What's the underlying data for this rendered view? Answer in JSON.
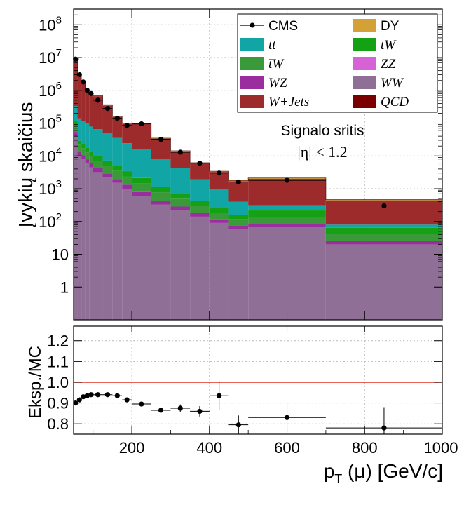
{
  "chart_data": [
    {
      "type": "stacked-histogram",
      "ylabel": "Įvykių skaičius",
      "yscale": "log",
      "ylim": [
        0.1,
        300000000
      ],
      "xlim": [
        50,
        1000
      ],
      "yticks": [
        {
          "value": 1,
          "label": "1"
        },
        {
          "value": 10,
          "label": "10"
        },
        {
          "value": 100,
          "label": "10",
          "exp": "2"
        },
        {
          "value": 1000,
          "label": "10",
          "exp": "3"
        },
        {
          "value": 10000,
          "label": "10",
          "exp": "4"
        },
        {
          "value": 100000,
          "label": "10",
          "exp": "5"
        },
        {
          "value": 1000000,
          "label": "10",
          "exp": "6"
        },
        {
          "value": 10000000,
          "label": "10",
          "exp": "7"
        },
        {
          "value": 100000000,
          "label": "10",
          "exp": "8"
        }
      ],
      "grid": true,
      "legend_position": "top-right",
      "annotation": {
        "line1": "Signalo sritis",
        "line2": "|η| < 1.2"
      },
      "bin_edges": [
        50,
        60,
        70,
        80,
        90,
        100,
        125,
        150,
        175,
        200,
        250,
        300,
        350,
        400,
        450,
        500,
        700,
        1000
      ],
      "stack": [
        {
          "name": "WW",
          "color": "#8f6f96",
          "values": [
            40000,
            10000,
            8000,
            6000,
            4500,
            3200,
            2200,
            1500,
            1000,
            600,
            330,
            220,
            140,
            90,
            60,
            70,
            20
          ]
        },
        {
          "name": "WZ",
          "color": "#9b2e9f",
          "values": [
            14000,
            3500,
            2600,
            1900,
            1400,
            1000,
            700,
            480,
            320,
            190,
            100,
            65,
            40,
            25,
            16,
            12,
            5
          ]
        },
        {
          "name": "t̄W",
          "color": "#3a9a3a",
          "values": [
            30000,
            8000,
            6500,
            5000,
            3800,
            2800,
            2100,
            1500,
            1000,
            650,
            350,
            210,
            120,
            70,
            40,
            55,
            17
          ]
        },
        {
          "name": "tW",
          "color": "#14a114",
          "values": [
            30000,
            7500,
            6200,
            4900,
            3900,
            2900,
            2200,
            1600,
            1100,
            680,
            370,
            210,
            120,
            70,
            40,
            80,
            22
          ]
        },
        {
          "name": "tt",
          "color": "#12a5a5",
          "values": [
            220000,
            110000,
            95000,
            80000,
            65000,
            55000,
            42000,
            30000,
            21000,
            14000,
            7000,
            3500,
            1500,
            700,
            240,
            95,
            16
          ]
        },
        {
          "name": "W+Jets",
          "color": "#9e2b2b",
          "values": [
            8000000,
            3000000,
            1500000,
            900000,
            700000,
            600000,
            300000,
            120000,
            70000,
            80000,
            25000,
            9500,
            4000,
            2300,
            1300,
            1700,
            360
          ]
        },
        {
          "name": "DY",
          "color": "#d4a137",
          "values": [
            400000,
            150000,
            80000,
            45000,
            35000,
            30000,
            15000,
            6000,
            3500,
            4000,
            1500,
            600,
            260,
            150,
            90,
            110,
            22
          ]
        }
      ],
      "hidden_legend_only": [
        {
          "name": "ZZ",
          "color": "#d662d6"
        },
        {
          "name": "QCD",
          "color": "#7a0000"
        }
      ],
      "data_points": {
        "name": "CMS",
        "color": "#000000",
        "x": [
          55,
          65,
          75,
          85,
          95,
          112.5,
          137.5,
          162.5,
          187.5,
          225,
          275,
          325,
          375,
          425,
          475,
          600,
          850
        ],
        "y": [
          9000000,
          3000000,
          1800000,
          1000000,
          800000,
          500000,
          280000,
          140000,
          85000,
          95000,
          32000,
          13000,
          6000,
          3000,
          1600,
          1800,
          300
        ],
        "xerr_low": [
          5,
          5,
          5,
          5,
          5,
          12.5,
          12.5,
          12.5,
          12.5,
          25,
          25,
          25,
          25,
          25,
          25,
          100,
          150
        ],
        "xerr_high": [
          5,
          5,
          5,
          5,
          5,
          12.5,
          12.5,
          12.5,
          12.5,
          25,
          25,
          25,
          25,
          25,
          25,
          100,
          150
        ]
      },
      "legend_labels": {
        "CMS": "CMS",
        "DY": "DY",
        "tt": "tt",
        "tW": "tW",
        "t̄W": "t̄W",
        "ZZ": "ZZ",
        "WZ": "WZ",
        "WW": "WW",
        "W+Jets": "W+Jets",
        "QCD": "QCD"
      }
    },
    {
      "type": "ratio",
      "ylabel": "Eksp./MC",
      "xlabel": "p",
      "xlabel_sub": "T",
      "xlabel_rest": " (μ) [GeV/c]",
      "xlim": [
        50,
        1000
      ],
      "ylim": [
        0.75,
        1.27
      ],
      "xticks": [
        200,
        400,
        600,
        800,
        1000
      ],
      "yticks": [
        0.8,
        0.9,
        1.0,
        1.1,
        1.2
      ],
      "ytick_labels": [
        "0.8",
        "0.9",
        "1.0",
        "1.1",
        "1.2"
      ],
      "reference_line": {
        "y": 1.0,
        "color": "#e03020"
      },
      "points": {
        "x": [
          55,
          65,
          75,
          85,
          95,
          112.5,
          137.5,
          162.5,
          187.5,
          225,
          275,
          325,
          375,
          425,
          475,
          600,
          850
        ],
        "y": [
          0.9,
          0.915,
          0.93,
          0.935,
          0.94,
          0.94,
          0.94,
          0.935,
          0.915,
          0.895,
          0.865,
          0.875,
          0.86,
          0.935,
          0.795,
          0.83,
          0.78
        ],
        "yerr": [
          0.004,
          0.004,
          0.004,
          0.004,
          0.004,
          0.004,
          0.005,
          0.006,
          0.007,
          0.008,
          0.012,
          0.018,
          0.025,
          0.07,
          0.045,
          0.07,
          0.1
        ],
        "xerr": [
          5,
          5,
          5,
          5,
          5,
          12.5,
          12.5,
          12.5,
          12.5,
          25,
          25,
          25,
          25,
          25,
          25,
          100,
          150
        ]
      }
    }
  ]
}
